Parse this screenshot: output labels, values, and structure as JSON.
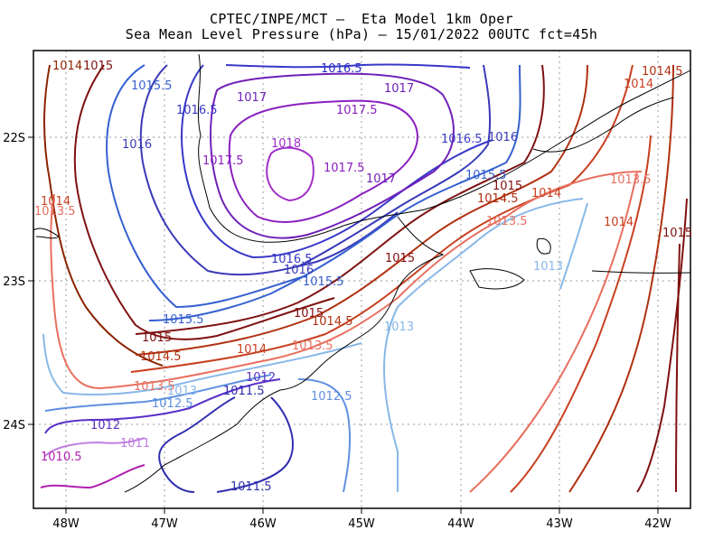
{
  "title": {
    "line1": "CPTEC/INPE/MCT –  Eta Model 1km Oper",
    "line2": "Sea Mean Level Pressure (hPa) – 15/01/2022 00UTC fct=45h"
  },
  "axes": {
    "x_ticks": [
      "48W",
      "47W",
      "46W",
      "45W",
      "44W",
      "43W",
      "42W"
    ],
    "y_ticks": [
      "22S",
      "23S",
      "24S"
    ]
  },
  "contour_labels": [
    {
      "text": "1014",
      "color": "#8b2500"
    },
    {
      "text": "1015",
      "color": "#7f1010"
    },
    {
      "text": "1016.5",
      "color": "#3030c8"
    },
    {
      "text": "1015.5",
      "color": "#3560d0"
    },
    {
      "text": "1016.5",
      "color": "#3838c8"
    },
    {
      "text": "1017",
      "color": "#7020b8"
    },
    {
      "text": "1017",
      "color": "#7020b8"
    },
    {
      "text": "1017.5",
      "color": "#8a20c0"
    },
    {
      "text": "1018",
      "color": "#a030c8"
    },
    {
      "text": "1016",
      "color": "#3a3ab8"
    },
    {
      "text": "1017.5",
      "color": "#8a20c0"
    },
    {
      "text": "1017.5",
      "color": "#8a20c0"
    },
    {
      "text": "1016.5",
      "color": "#3838c8"
    },
    {
      "text": "1016",
      "color": "#3a3ab8"
    },
    {
      "text": "1017",
      "color": "#7020b8"
    },
    {
      "text": "1015.5",
      "color": "#3560d0"
    },
    {
      "text": "1015",
      "color": "#7f1010"
    },
    {
      "text": "1014.5",
      "color": "#b03010"
    },
    {
      "text": "1014",
      "color": "#c84020"
    },
    {
      "text": "1013.5",
      "color": "#e87060"
    },
    {
      "text": "1014",
      "color": "#c84020"
    },
    {
      "text": "1013.5",
      "color": "#e87060"
    },
    {
      "text": "1013",
      "color": "#88b8e8"
    },
    {
      "text": "1015",
      "color": "#7f1010"
    },
    {
      "text": "1014.5",
      "color": "#b03010"
    },
    {
      "text": "1014",
      "color": "#c84020"
    },
    {
      "text": "1013.5",
      "color": "#e87060"
    },
    {
      "text": "1016.5",
      "color": "#3838c8"
    },
    {
      "text": "1016",
      "color": "#3a3ab8"
    },
    {
      "text": "1015.5",
      "color": "#3560d0"
    },
    {
      "text": "1015",
      "color": "#7f1010"
    },
    {
      "text": "1014.5",
      "color": "#b03010"
    },
    {
      "text": "1015.5",
      "color": "#3560d0"
    },
    {
      "text": "1015",
      "color": "#7f1010"
    },
    {
      "text": "1014",
      "color": "#c84020"
    },
    {
      "text": "1014.5",
      "color": "#b03010"
    },
    {
      "text": "1013.5",
      "color": "#e87060"
    },
    {
      "text": "1013",
      "color": "#88b8e8"
    },
    {
      "text": "1014",
      "color": "#c84020"
    },
    {
      "text": "1013.5",
      "color": "#e87060"
    },
    {
      "text": "1013",
      "color": "#88b8e8"
    },
    {
      "text": "1012.5",
      "color": "#6090e0"
    },
    {
      "text": "1012",
      "color": "#5a30c8"
    },
    {
      "text": "1011.5",
      "color": "#3030b0"
    },
    {
      "text": "1012.5",
      "color": "#6090e0"
    },
    {
      "text": "1012",
      "color": "#5a30c8"
    },
    {
      "text": "1011",
      "color": "#c080e0"
    },
    {
      "text": "1010.5",
      "color": "#b020b0"
    },
    {
      "text": "1011.5",
      "color": "#3030b0"
    },
    {
      "text": "1015",
      "color": "#7f1010"
    }
  ],
  "colors": {
    "frame": "#000000",
    "grid": "#999999",
    "coast": "#000000"
  }
}
